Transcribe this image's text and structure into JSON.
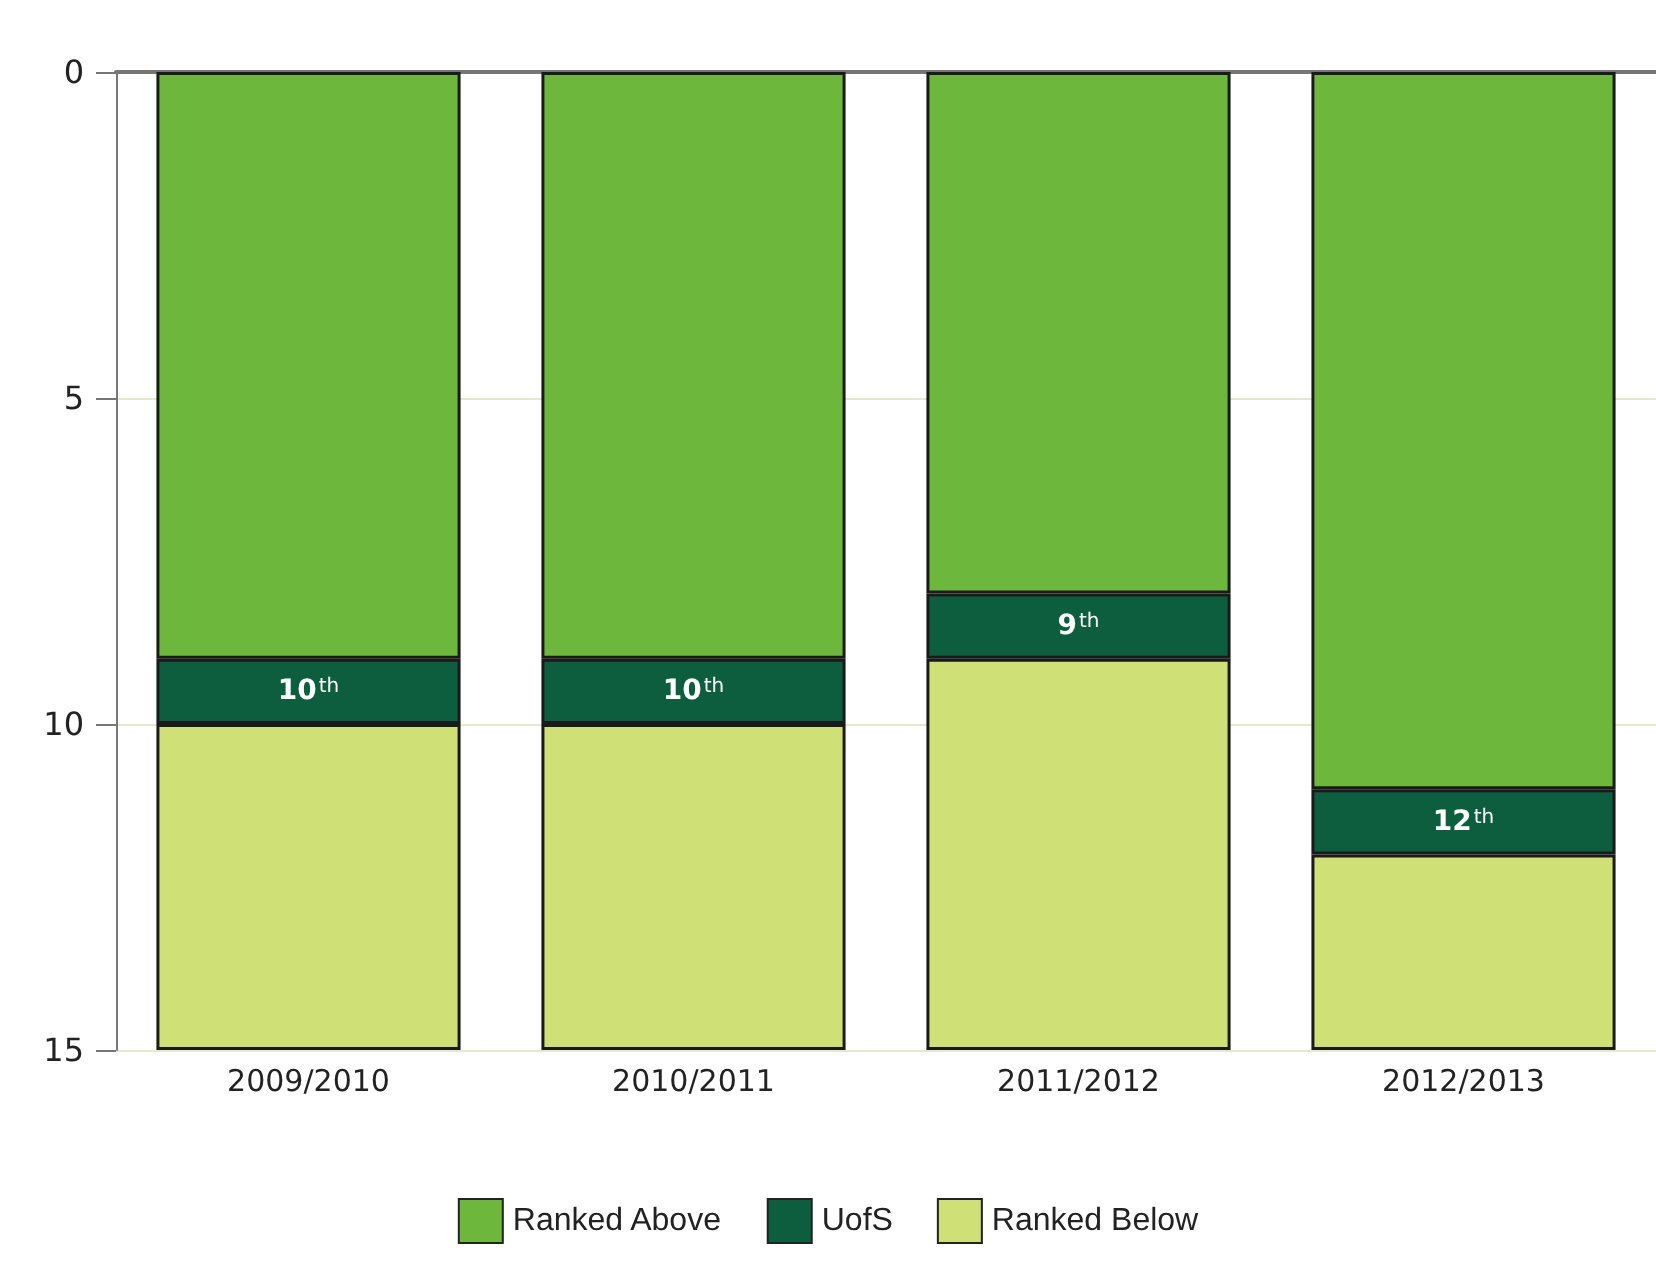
{
  "chart_data": {
    "type": "bar",
    "stacked": true,
    "categories": [
      "2009/2010",
      "2010/2011",
      "2011/2012",
      "2012/2013"
    ],
    "series": [
      {
        "name": "Ranked Above",
        "color": "#6db83c",
        "values": [
          9,
          9,
          8,
          11
        ]
      },
      {
        "name": "UofS",
        "color": "#0d5e3e",
        "values": [
          1,
          1,
          1,
          1
        ]
      },
      {
        "name": "Ranked Below",
        "color": "#cfe077",
        "values": [
          5,
          5,
          6,
          3
        ]
      }
    ],
    "annotations": [
      "10$^{th}$",
      "10$^{th}$",
      "9$^{th}$",
      "12$^{th}$"
    ],
    "ylim": [
      15,
      0
    ],
    "yticks": [
      0,
      5,
      10,
      15
    ],
    "grid": "y",
    "legend": "bottom"
  }
}
